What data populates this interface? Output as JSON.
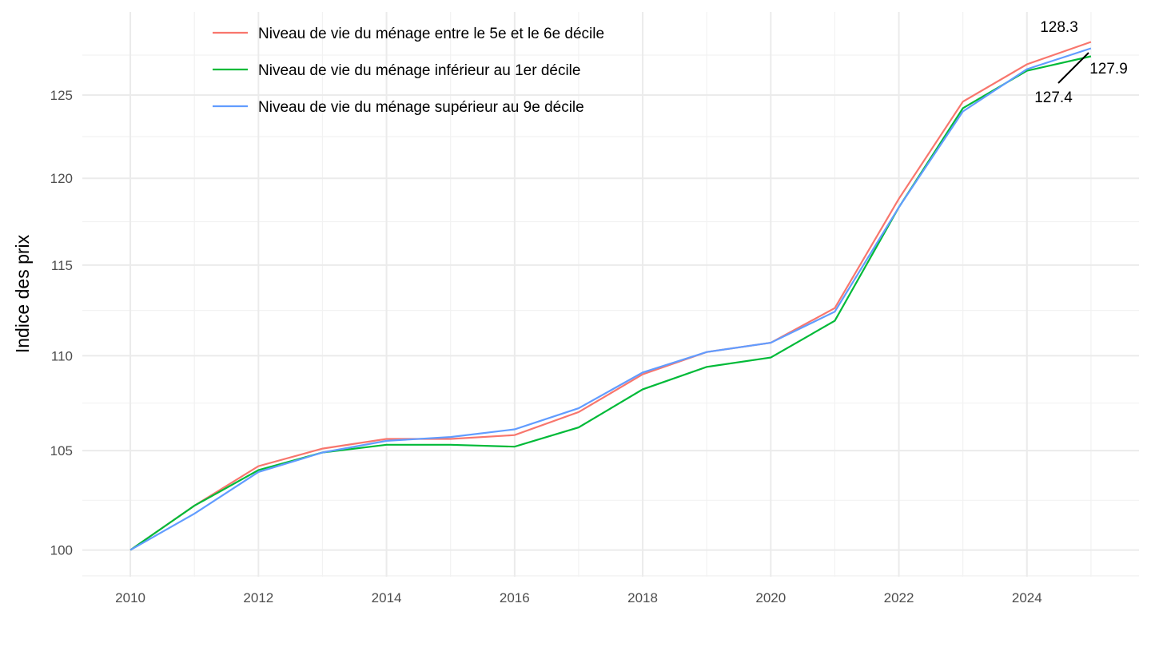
{
  "chart_data": {
    "type": "line",
    "title": "",
    "xlabel": "",
    "ylabel": "Indice des prix",
    "y_scale": "log",
    "xlim": [
      2009.25,
      2025.75
    ],
    "ylim": [
      98.7,
      130.2
    ],
    "x_ticks": [
      2010,
      2012,
      2014,
      2016,
      2018,
      2020,
      2022,
      2024
    ],
    "x_tick_labels": [
      "2010",
      "2012",
      "2014",
      "2016",
      "2018",
      "2020",
      "2022",
      "2024"
    ],
    "y_ticks": [
      100,
      105,
      110,
      115,
      120,
      125
    ],
    "y_tick_labels": [
      "100",
      "105",
      "110",
      "115",
      "120",
      "125"
    ],
    "grid": true,
    "legend_placement": "top-left",
    "x": [
      2010,
      2011,
      2012,
      2013,
      2014,
      2015,
      2016,
      2017,
      2018,
      2019,
      2020,
      2021,
      2022,
      2023,
      2024,
      2025
    ],
    "series": [
      {
        "name": "Niveau de vie du ménage entre le 5e et le 6e décile",
        "color": "#F8766D",
        "values": [
          100,
          102.2,
          104.2,
          105.1,
          105.6,
          105.6,
          105.8,
          107.0,
          109.0,
          110.2,
          110.7,
          112.6,
          118.8,
          124.6,
          126.9,
          128.3
        ]
      },
      {
        "name": "Niveau de vie du ménage inférieur au 1er décile",
        "color": "#00BA38",
        "values": [
          100,
          102.2,
          104.0,
          104.9,
          105.3,
          105.3,
          105.2,
          106.2,
          108.2,
          109.4,
          109.9,
          111.9,
          118.3,
          124.2,
          126.5,
          127.4
        ]
      },
      {
        "name": "Niveau de vie du ménage supérieur au 9e décile",
        "color": "#619CFF",
        "values": [
          100,
          101.8,
          103.9,
          104.9,
          105.5,
          105.7,
          106.1,
          107.2,
          109.1,
          110.2,
          110.7,
          112.4,
          118.3,
          124.0,
          126.6,
          127.9
        ]
      }
    ],
    "annotations": [
      "128.3",
      "127.9",
      "127.4"
    ]
  }
}
